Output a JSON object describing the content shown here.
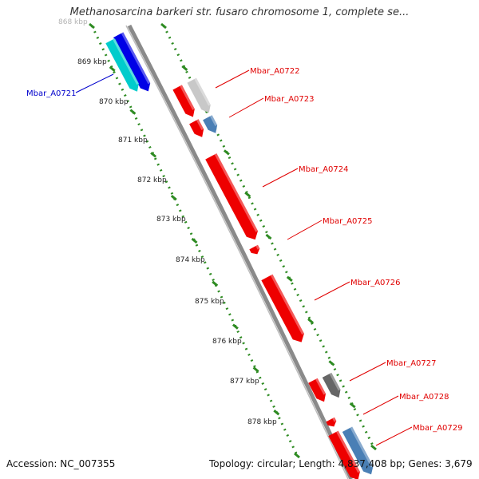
{
  "title": "Methanosarcina barkeri str. fusaro chromosome 1, complete se...",
  "footer": {
    "accession": "Accession: NC_007355",
    "summary": "Topology: circular; Length: 4,837,408 bp; Genes: 3,679"
  },
  "colors": {
    "backbone": "#8a8a8a",
    "tick": "#2e8b22",
    "forward_label": "#0000cc",
    "reverse_label": "#e00000"
  },
  "kbp_labels": [
    "868 kbp",
    "869 kbp",
    "870 kbp",
    "871 kbp",
    "872 kbp",
    "873 kbp",
    "874 kbp",
    "875 kbp",
    "876 kbp",
    "877 kbp",
    "878 kbp"
  ],
  "genes": [
    {
      "id": "Mbar_A0721",
      "label": "Mbar_A0721",
      "strand": "forward",
      "color": "#0000e6"
    },
    {
      "id": "mbar-a0721-rna",
      "label": "",
      "strand": "forward",
      "color": "#00cccc"
    },
    {
      "id": "Mbar_A0722",
      "label": "Mbar_A0722",
      "strand": "reverse",
      "color": "#c8c8c8"
    },
    {
      "id": "Mbar_A0722-red",
      "label": "",
      "strand": "reverse",
      "color": "#ee0000"
    },
    {
      "id": "Mbar_A0723",
      "label": "Mbar_A0723",
      "strand": "reverse",
      "color": "#4a7fb5"
    },
    {
      "id": "Mbar_A0723-red",
      "label": "",
      "strand": "reverse",
      "color": "#ee0000"
    },
    {
      "id": "Mbar_A0724",
      "label": "Mbar_A0724",
      "strand": "reverse",
      "color": "#ee0000"
    },
    {
      "id": "Mbar_A0725",
      "label": "Mbar_A0725",
      "strand": "reverse",
      "color": "#ee0000"
    },
    {
      "id": "Mbar_A0726",
      "label": "Mbar_A0726",
      "strand": "reverse",
      "color": "#ee0000"
    },
    {
      "id": "Mbar_A0727",
      "label": "Mbar_A0727",
      "strand": "reverse",
      "color": "#666666"
    },
    {
      "id": "Mbar_A0727-red",
      "label": "",
      "strand": "reverse",
      "color": "#ee0000"
    },
    {
      "id": "Mbar_A0728",
      "label": "Mbar_A0728",
      "strand": "reverse",
      "color": "#ee0000"
    },
    {
      "id": "Mbar_A0729",
      "label": "Mbar_A0729",
      "strand": "reverse",
      "color": "#4a7fb5"
    },
    {
      "id": "Mbar_A0729-red",
      "label": "",
      "strand": "reverse",
      "color": "#ee0000"
    }
  ]
}
